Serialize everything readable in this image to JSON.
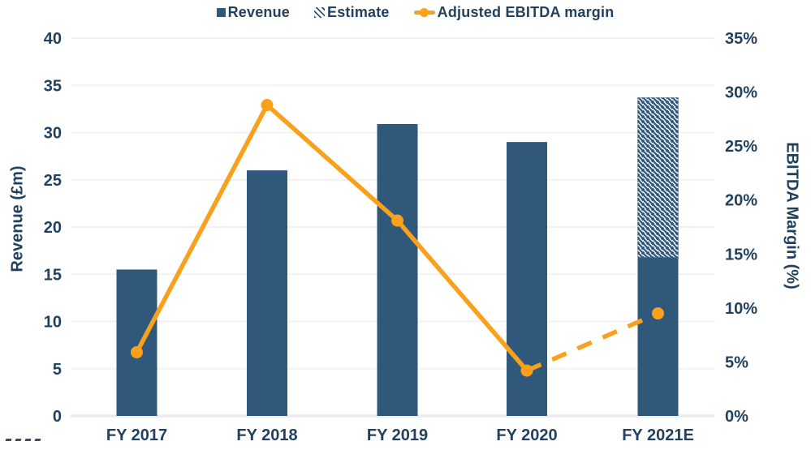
{
  "chart_data": {
    "type": "combo",
    "categories": [
      "FY 2017",
      "FY 2018",
      "FY 2019",
      "FY 2020",
      "FY 2021E"
    ],
    "series": [
      {
        "name": "Revenue",
        "type": "bar",
        "axis": "left",
        "values": [
          15.5,
          26.0,
          30.9,
          29.0,
          16.8
        ]
      },
      {
        "name": "Estimate",
        "type": "bar",
        "style": "hatched",
        "axis": "left",
        "stacked_on": "Revenue",
        "values": [
          0,
          0,
          0,
          0,
          16.9
        ]
      },
      {
        "name": "Adjusted EBITDA margin",
        "type": "line",
        "axis": "right",
        "values": [
          5.9,
          28.8,
          18.1,
          4.2,
          9.5
        ],
        "dashed_from_index": 3
      }
    ],
    "left_axis": {
      "label": "Revenue (£m)",
      "min": 0,
      "max": 40,
      "step": 5,
      "tick_labels": [
        "0",
        "5",
        "10",
        "15",
        "20",
        "25",
        "30",
        "35",
        "40"
      ]
    },
    "right_axis": {
      "label": "EBITDA Margin (%)",
      "min": 0,
      "max": 35,
      "step": 5,
      "tick_labels": [
        "0%",
        "5%",
        "10%",
        "15%",
        "20%",
        "25%",
        "30%",
        "35%"
      ]
    },
    "grid": true,
    "legend_position": "top",
    "colors": {
      "bar": "#30587B",
      "line": "#F9A11C",
      "text": "#21415F",
      "gridline": "#F2F2F2",
      "baseline": "#EBEBEB",
      "background": "#FFFFFF"
    }
  }
}
